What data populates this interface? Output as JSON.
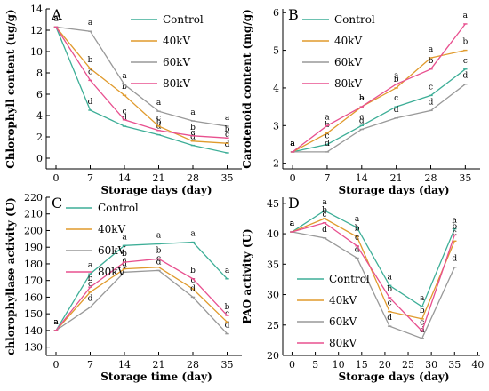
{
  "figure": {
    "legend_entries": [
      "Control",
      "40kV",
      "60kV",
      "80kV"
    ]
  },
  "chart_data": [
    {
      "panel": "A",
      "type": "line",
      "xlabel": "Storage days (day)",
      "ylabel": "Chlorophyll content (ug/g)",
      "x": [
        0,
        7,
        14,
        21,
        28,
        35
      ],
      "xlim": [
        -2,
        38
      ],
      "ylim": [
        -1,
        14
      ],
      "xticks": [
        0,
        7,
        14,
        21,
        28,
        35
      ],
      "yticks": [
        0,
        2,
        4,
        6,
        8,
        10,
        12,
        14
      ],
      "legend": "top-right",
      "series": [
        {
          "name": "Control",
          "color": "#3dae97",
          "values": [
            12.3,
            4.5,
            3.0,
            2.2,
            1.2,
            0.5
          ],
          "letters": [
            "a",
            "d",
            "d",
            "d",
            "d",
            "d"
          ]
        },
        {
          "name": "40kV",
          "color": "#e09a2c",
          "values": [
            12.3,
            8.4,
            5.9,
            3.0,
            1.6,
            1.4
          ],
          "letters": [
            "a",
            "b",
            "b",
            "c",
            "c",
            "c"
          ]
        },
        {
          "name": "60kV",
          "color": "#999999",
          "values": [
            12.3,
            11.9,
            6.9,
            4.4,
            3.5,
            3.0
          ],
          "letters": [
            "a",
            "a",
            "a",
            "a",
            "a",
            "a"
          ]
        },
        {
          "name": "80kV",
          "color": "#e8508f",
          "values": [
            12.3,
            7.3,
            3.6,
            2.6,
            2.1,
            1.9
          ],
          "letters": [
            "a",
            "c",
            "c",
            "b",
            "b",
            "b"
          ]
        }
      ]
    },
    {
      "panel": "B",
      "type": "line",
      "xlabel": "Storage days (day)",
      "ylabel": "Carotenoid content (mg/g)",
      "x": [
        0,
        7,
        14,
        21,
        28,
        35
      ],
      "xlim": [
        -2,
        38
      ],
      "ylim": [
        1.85,
        6.1
      ],
      "xticks": [
        0,
        7,
        14,
        21,
        28,
        35
      ],
      "yticks": [
        2,
        3,
        4,
        5,
        6
      ],
      "legend": "top-left",
      "series": [
        {
          "name": "Control",
          "color": "#3dae97",
          "values": [
            2.3,
            2.5,
            3.0,
            3.5,
            3.8,
            4.5
          ],
          "letters": [
            "a",
            "c",
            "c",
            "c",
            "c",
            "c"
          ]
        },
        {
          "name": "40kV",
          "color": "#e09a2c",
          "values": [
            2.3,
            2.8,
            3.5,
            4.0,
            4.8,
            5.0
          ],
          "letters": [
            "a",
            "b",
            "b",
            "b",
            "a",
            "b"
          ]
        },
        {
          "name": "60kV",
          "color": "#999999",
          "values": [
            2.3,
            2.3,
            2.9,
            3.2,
            3.4,
            4.1
          ],
          "letters": [
            "a",
            "d",
            "d",
            "d",
            "d",
            "d"
          ]
        },
        {
          "name": "80kV",
          "color": "#e8508f",
          "values": [
            2.3,
            3.0,
            3.5,
            4.1,
            4.5,
            5.7
          ],
          "letters": [
            "a",
            "a",
            "a",
            "a",
            "b",
            "a"
          ]
        }
      ]
    },
    {
      "panel": "C",
      "type": "line",
      "xlabel": "Storage time (day)",
      "ylabel": "chlorophyllase activity (U)",
      "x": [
        0,
        7,
        14,
        21,
        28,
        35
      ],
      "xlim": [
        -2,
        38
      ],
      "ylim": [
        125,
        220
      ],
      "xticks": [
        0,
        7,
        14,
        21,
        28,
        35
      ],
      "yticks": [
        130,
        140,
        150,
        160,
        170,
        180,
        190,
        200,
        210,
        220
      ],
      "legend": "top-left",
      "series": [
        {
          "name": "Control",
          "color": "#3dae97",
          "values": [
            140,
            174,
            191,
            192,
            193,
            171
          ],
          "letters": [
            "a",
            "a",
            "a",
            "a",
            "a",
            "a"
          ]
        },
        {
          "name": "40kV",
          "color": "#e09a2c",
          "values": [
            140,
            163,
            177,
            178,
            165,
            145
          ],
          "letters": [
            "a",
            "c",
            "c",
            "c",
            "c",
            "c"
          ]
        },
        {
          "name": "60kV",
          "color": "#999999",
          "values": [
            140,
            154,
            175,
            176,
            160,
            138
          ],
          "letters": [
            "a",
            "d",
            "d",
            "d",
            "d",
            "d"
          ]
        },
        {
          "name": "80kV",
          "color": "#e8508f",
          "values": [
            140,
            166,
            181,
            183,
            171,
            149
          ],
          "letters": [
            "a",
            "b",
            "b",
            "b",
            "b",
            "b"
          ]
        }
      ]
    },
    {
      "panel": "D",
      "type": "line",
      "xlabel": "Storage days (day)",
      "ylabel": "PAO activity (U)",
      "x": [
        0,
        7,
        14,
        21,
        28,
        35
      ],
      "xlim": [
        -2,
        40.5
      ],
      "ylim": [
        20,
        46
      ],
      "xticks": [
        0,
        5,
        10,
        15,
        20,
        25,
        30,
        35,
        40
      ],
      "yticks": [
        20,
        25,
        30,
        35,
        40,
        45
      ],
      "legend": "bottom-left",
      "series": [
        {
          "name": "Control",
          "color": "#3dae97",
          "values": [
            40.3,
            43.8,
            41.0,
            31.5,
            28.0,
            40.8
          ],
          "letters": [
            "a",
            "a",
            "a",
            "a",
            "a",
            "a"
          ]
        },
        {
          "name": "40kV",
          "color": "#e09a2c",
          "values": [
            40.3,
            42.5,
            39.5,
            27.2,
            26.0,
            38.8
          ],
          "letters": [
            "a",
            "b",
            "b",
            "c",
            "b",
            "c"
          ]
        },
        {
          "name": "60kV",
          "color": "#999999",
          "values": [
            40.3,
            39.3,
            36.0,
            24.8,
            22.8,
            34.5
          ],
          "letters": [
            "a",
            "d",
            "d",
            "d",
            "d",
            "d"
          ]
        },
        {
          "name": "80kV",
          "color": "#e8508f",
          "values": [
            40.3,
            41.8,
            38.0,
            29.5,
            24.0,
            39.8
          ],
          "letters": [
            "a",
            "c",
            "c",
            "b",
            "c",
            "b"
          ]
        }
      ]
    }
  ]
}
